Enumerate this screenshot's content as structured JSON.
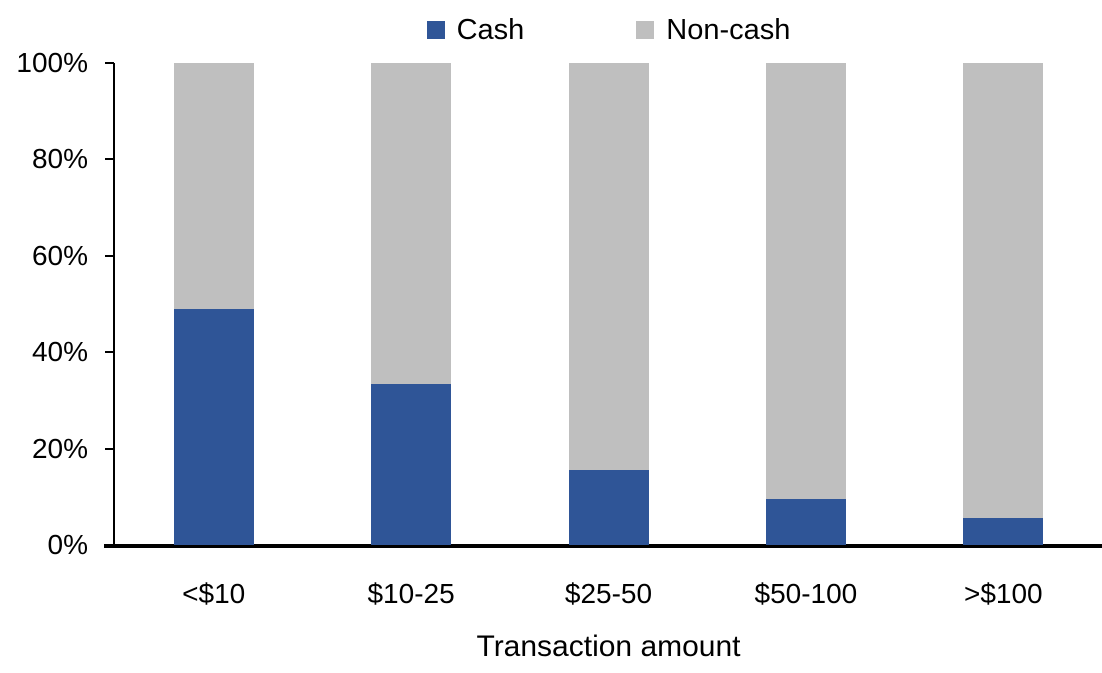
{
  "chart_data": {
    "type": "bar",
    "stacked": true,
    "title": "",
    "xlabel": "Transaction amount",
    "ylabel": "",
    "categories": [
      "<$10",
      "$10-25",
      "$25-50",
      "$50-100",
      ">$100"
    ],
    "series": [
      {
        "name": "Cash",
        "color": "#2F5597",
        "values": [
          49,
          33.5,
          15.5,
          9.5,
          5.5
        ]
      },
      {
        "name": "Non-cash",
        "color": "#BFBFBF",
        "values": [
          51,
          66.5,
          84.5,
          90.5,
          94.5
        ]
      }
    ],
    "ylim": [
      0,
      100
    ],
    "ytick_labels": [
      "0%",
      "20%",
      "40%",
      "60%",
      "80%",
      "100%"
    ],
    "ytick_values": [
      0,
      20,
      40,
      60,
      80,
      100
    ],
    "legend_position": "top-center",
    "grid": false,
    "axis_color": "#000000",
    "background_color": "#FFFFFF"
  }
}
